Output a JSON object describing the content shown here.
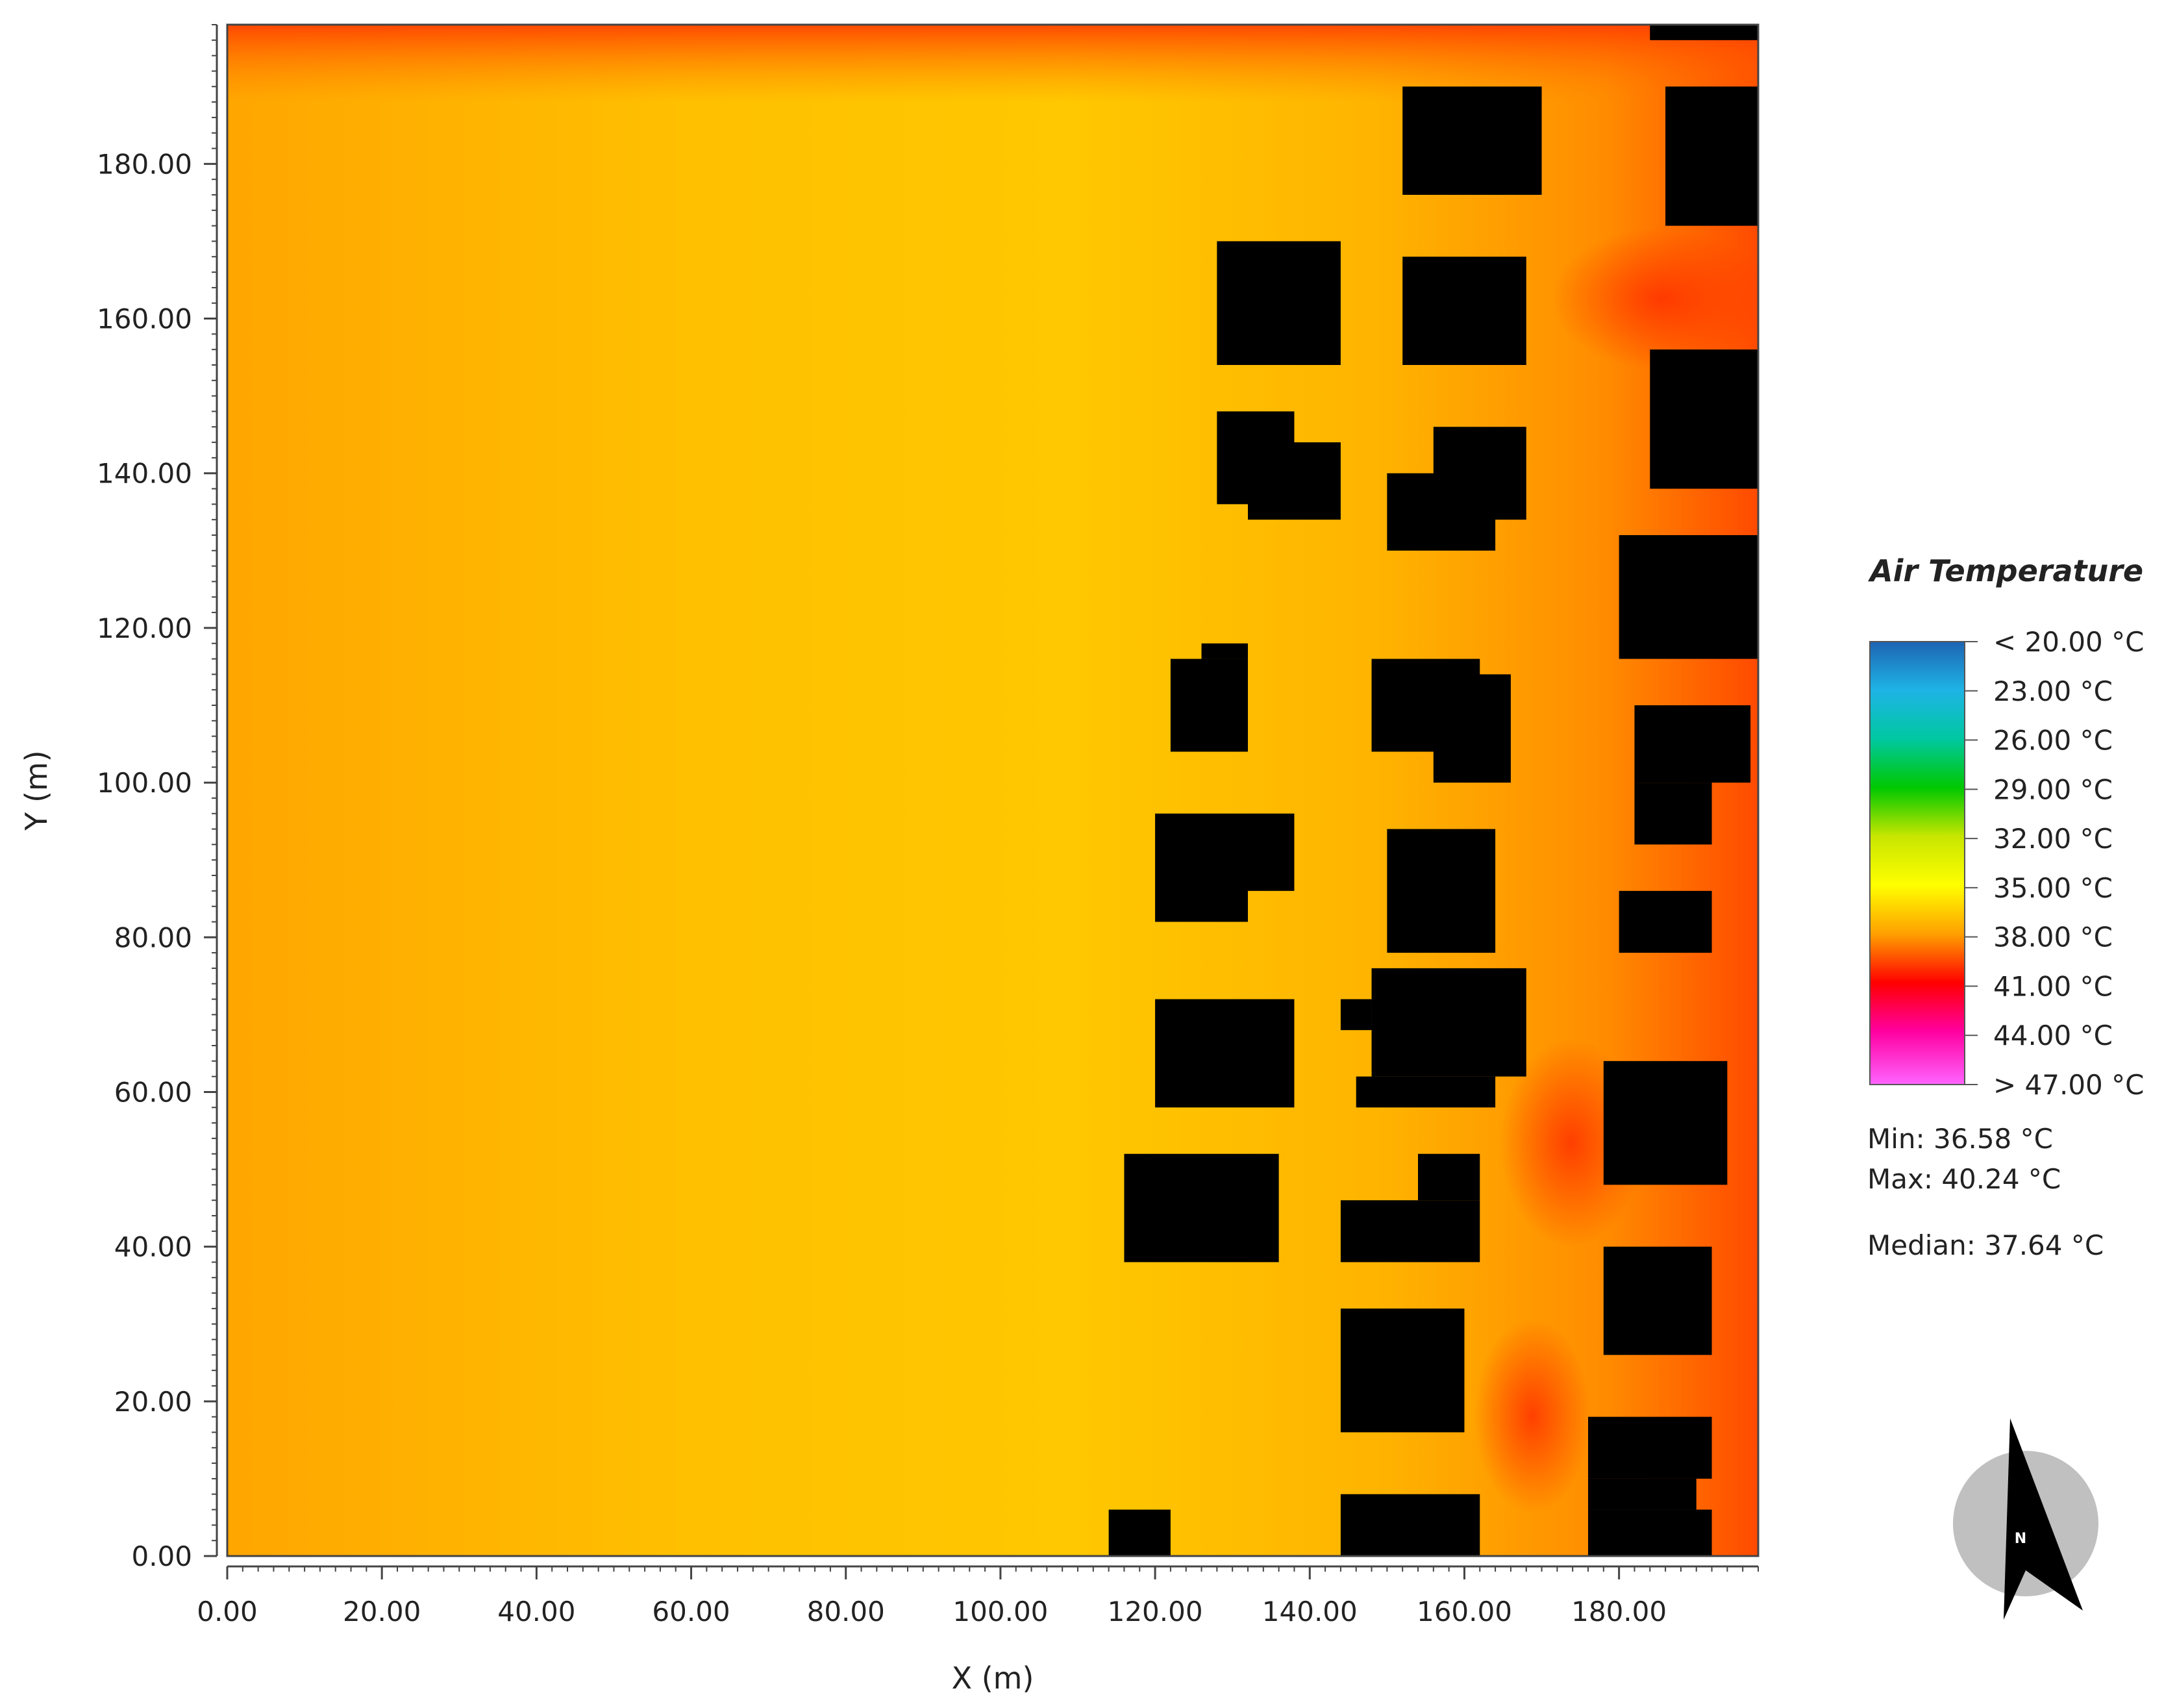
{
  "chart_data": {
    "type": "heatmap",
    "title": "",
    "xlabel": "X (m)",
    "ylabel": "Y (m)",
    "xlim": [
      0,
      198
    ],
    "ylim": [
      0,
      198
    ],
    "x_ticks": [
      "0.00",
      "20.00",
      "40.00",
      "60.00",
      "80.00",
      "100.00",
      "120.00",
      "140.00",
      "160.00",
      "180.00"
    ],
    "y_ticks": [
      "0.00",
      "20.00",
      "40.00",
      "60.00",
      "80.00",
      "100.00",
      "120.00",
      "140.00",
      "160.00",
      "180.00"
    ],
    "grid": false,
    "legend": {
      "title": "Air Temperature",
      "placement": "right",
      "labels": [
        "< 20.00 °C",
        "23.00  °C",
        "26.00  °C",
        "29.00  °C",
        "32.00  °C",
        "35.00  °C",
        "38.00  °C",
        "41.00  °C",
        "44.00  °C",
        "> 47.00 °C"
      ],
      "colors": [
        "#1e64b4",
        "#1eb4e6",
        "#00c8a0",
        "#00c800",
        "#c8e600",
        "#ffff00",
        "#ffa000",
        "#ff0000",
        "#ff00a0",
        "#ff64ff"
      ]
    },
    "stats": {
      "min": "Min: 36.58 °C",
      "max": "Max: 40.24 °C",
      "median": "Median: 37.64 °C"
    },
    "field_colors": {
      "cool": "#ffc800",
      "mid": "#ffa800",
      "warm": "#ff8000",
      "hot": "#ff3c00",
      "building": "#000000"
    },
    "buildings": [
      {
        "x": [
          114,
          122
        ],
        "y": [
          0,
          6
        ]
      },
      {
        "x": [
          144,
          162
        ],
        "y": [
          0,
          8
        ]
      },
      {
        "x": [
          176,
          192
        ],
        "y": [
          0,
          6
        ]
      },
      {
        "x": [
          176,
          190
        ],
        "y": [
          6,
          10
        ]
      },
      {
        "x": [
          176,
          192
        ],
        "y": [
          10,
          18
        ]
      },
      {
        "x": [
          144,
          160
        ],
        "y": [
          16,
          32
        ]
      },
      {
        "x": [
          178,
          192
        ],
        "y": [
          26,
          40
        ]
      },
      {
        "x": [
          116,
          136
        ],
        "y": [
          38,
          52
        ]
      },
      {
        "x": [
          144,
          162
        ],
        "y": [
          38,
          46
        ]
      },
      {
        "x": [
          154,
          162
        ],
        "y": [
          46,
          52
        ]
      },
      {
        "x": [
          178,
          194
        ],
        "y": [
          48,
          64
        ]
      },
      {
        "x": [
          120,
          138
        ],
        "y": [
          58,
          72
        ]
      },
      {
        "x": [
          146,
          164
        ],
        "y": [
          58,
          62
        ]
      },
      {
        "x": [
          148,
          168
        ],
        "y": [
          62,
          76
        ]
      },
      {
        "x": [
          144,
          148
        ],
        "y": [
          68,
          72
        ]
      },
      {
        "x": [
          180,
          192
        ],
        "y": [
          78,
          86
        ]
      },
      {
        "x": [
          150,
          164
        ],
        "y": [
          78,
          94
        ]
      },
      {
        "x": [
          120,
          132
        ],
        "y": [
          82,
          96
        ]
      },
      {
        "x": [
          132,
          138
        ],
        "y": [
          86,
          96
        ]
      },
      {
        "x": [
          182,
          192
        ],
        "y": [
          92,
          100
        ]
      },
      {
        "x": [
          182,
          197
        ],
        "y": [
          100,
          110
        ]
      },
      {
        "x": [
          122,
          132
        ],
        "y": [
          104,
          116
        ]
      },
      {
        "x": [
          126,
          132
        ],
        "y": [
          116,
          118
        ]
      },
      {
        "x": [
          148,
          162
        ],
        "y": [
          104,
          116
        ]
      },
      {
        "x": [
          156,
          166
        ],
        "y": [
          100,
          114
        ]
      },
      {
        "x": [
          180,
          198
        ],
        "y": [
          116,
          132
        ]
      },
      {
        "x": [
          150,
          164
        ],
        "y": [
          130,
          140
        ]
      },
      {
        "x": [
          156,
          168
        ],
        "y": [
          134,
          146
        ]
      },
      {
        "x": [
          128,
          138
        ],
        "y": [
          136,
          148
        ]
      },
      {
        "x": [
          132,
          144
        ],
        "y": [
          134,
          144
        ]
      },
      {
        "x": [
          184,
          198
        ],
        "y": [
          138,
          156
        ]
      },
      {
        "x": [
          128,
          144
        ],
        "y": [
          154,
          170
        ]
      },
      {
        "x": [
          152,
          168
        ],
        "y": [
          154,
          168
        ]
      },
      {
        "x": [
          152,
          170
        ],
        "y": [
          176,
          190
        ]
      },
      {
        "x": [
          186,
          198
        ],
        "y": [
          172,
          190
        ]
      },
      {
        "x": [
          184,
          198
        ],
        "y": [
          196,
          198
        ]
      }
    ]
  }
}
